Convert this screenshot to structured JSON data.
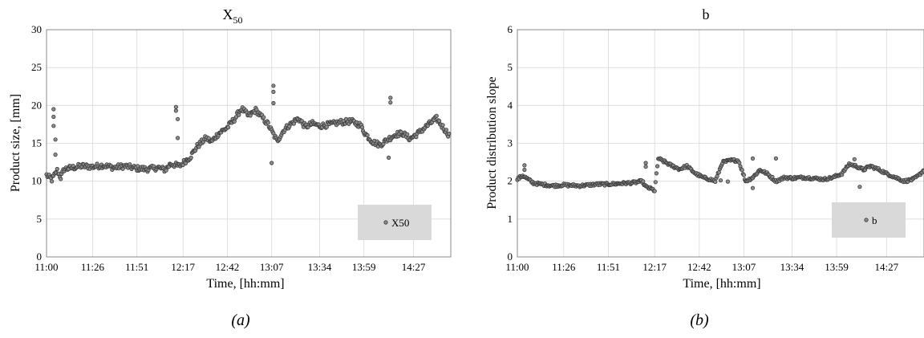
{
  "chart_data": [
    {
      "type": "scatter",
      "title_main": "X",
      "title_sub": "50",
      "xlabel": "Time, [hh:mm]",
      "ylabel": "Product size, [mm]",
      "x_tick_labels": [
        "11:00",
        "11:26",
        "11:51",
        "12:17",
        "12:42",
        "13:07",
        "13:34",
        "13:59",
        "14:27"
      ],
      "xlim": [
        "11:00",
        "14:48"
      ],
      "ylim": [
        0,
        30
      ],
      "yticks": [
        0,
        5,
        10,
        15,
        20,
        25,
        30
      ],
      "grid": true,
      "legend_position": "bottom-right",
      "series": [
        {
          "name": "X50",
          "marker": "circle",
          "anchors": [
            [
              "11:00",
              10.8
            ],
            [
              "11:03",
              10.2
            ],
            [
              "11:06",
              11.4
            ],
            [
              "11:08",
              10.5
            ],
            [
              "11:10",
              11.6
            ],
            [
              "11:15",
              11.8
            ],
            [
              "11:20",
              12.0
            ],
            [
              "11:26",
              11.9
            ],
            [
              "11:32",
              12.1
            ],
            [
              "11:38",
              11.8
            ],
            [
              "11:44",
              12.0
            ],
            [
              "11:51",
              11.7
            ],
            [
              "11:57",
              11.6
            ],
            [
              "12:03",
              11.8
            ],
            [
              "12:07",
              11.5
            ],
            [
              "12:10",
              12.3
            ],
            [
              "12:15",
              12.0
            ],
            [
              "12:21",
              13.2
            ],
            [
              "12:25",
              14.6
            ],
            [
              "12:30",
              15.7
            ],
            [
              "12:33",
              15.2
            ],
            [
              "12:37",
              16.3
            ],
            [
              "12:42",
              17.1
            ],
            [
              "12:46",
              18.2
            ],
            [
              "12:50",
              19.6
            ],
            [
              "12:54",
              18.6
            ],
            [
              "12:58",
              19.4
            ],
            [
              "13:02",
              18.3
            ],
            [
              "13:05",
              17.5
            ],
            [
              "13:10",
              15.3
            ],
            [
              "13:14",
              16.8
            ],
            [
              "13:18",
              17.6
            ],
            [
              "13:22",
              18.3
            ],
            [
              "13:26",
              17.2
            ],
            [
              "13:30",
              17.6
            ],
            [
              "13:34",
              17.3
            ],
            [
              "13:40",
              17.5
            ],
            [
              "13:46",
              17.8
            ],
            [
              "13:52",
              17.9
            ],
            [
              "13:57",
              17.4
            ],
            [
              "14:00",
              16.2
            ],
            [
              "14:04",
              15.2
            ],
            [
              "14:08",
              14.8
            ],
            [
              "14:13",
              15.6
            ],
            [
              "14:17",
              16.2
            ],
            [
              "14:21",
              16.3
            ],
            [
              "14:25",
              15.6
            ],
            [
              "14:30",
              16.4
            ],
            [
              "14:35",
              17.4
            ],
            [
              "14:40",
              18.3
            ],
            [
              "14:44",
              17.0
            ],
            [
              "14:47",
              16.1
            ]
          ],
          "outliers": [
            [
              "11:04",
              19.5
            ],
            [
              "11:04",
              18.5
            ],
            [
              "11:04",
              17.3
            ],
            [
              "11:05",
              15.5
            ],
            [
              "11:05",
              13.5
            ],
            [
              "12:13",
              19.8
            ],
            [
              "12:13",
              19.3
            ],
            [
              "12:14",
              18.2
            ],
            [
              "12:14",
              15.7
            ],
            [
              "13:08",
              22.6
            ],
            [
              "13:08",
              21.8
            ],
            [
              "13:08",
              20.3
            ],
            [
              "13:07",
              12.4
            ],
            [
              "14:14",
              21.0
            ],
            [
              "14:14",
              20.4
            ],
            [
              "14:13",
              13.1
            ]
          ]
        }
      ]
    },
    {
      "type": "scatter",
      "title": "b",
      "xlabel": "Time, [hh:mm]",
      "ylabel": "Product distribution slope",
      "x_tick_labels": [
        "11:00",
        "11:26",
        "11:51",
        "12:17",
        "12:42",
        "13:07",
        "13:34",
        "13:59",
        "14:27"
      ],
      "xlim": [
        "11:00",
        "14:48"
      ],
      "ylim": [
        0,
        6
      ],
      "yticks": [
        0,
        1,
        2,
        3,
        4,
        5,
        6
      ],
      "grid": true,
      "legend_position": "bottom-right",
      "series": [
        {
          "name": "b",
          "marker": "circle",
          "anchors": [
            [
              "11:00",
              2.05
            ],
            [
              "11:03",
              2.15
            ],
            [
              "11:06",
              2.05
            ],
            [
              "11:09",
              1.95
            ],
            [
              "11:13",
              1.92
            ],
            [
              "11:20",
              1.88
            ],
            [
              "11:26",
              1.9
            ],
            [
              "11:35",
              1.88
            ],
            [
              "11:45",
              1.92
            ],
            [
              "11:51",
              1.92
            ],
            [
              "11:58",
              1.94
            ],
            [
              "12:05",
              1.96
            ],
            [
              "12:10",
              2.0
            ],
            [
              "12:12",
              1.85
            ],
            [
              "12:15",
              1.8
            ],
            [
              "12:17",
              1.75
            ],
            [
              "12:19",
              2.6
            ],
            [
              "12:23",
              2.5
            ],
            [
              "12:27",
              2.4
            ],
            [
              "12:31",
              2.32
            ],
            [
              "12:35",
              2.4
            ],
            [
              "12:40",
              2.2
            ],
            [
              "12:44",
              2.1
            ],
            [
              "12:48",
              2.05
            ],
            [
              "12:51",
              2.0
            ],
            [
              "12:55",
              2.5
            ],
            [
              "13:00",
              2.55
            ],
            [
              "13:04",
              2.55
            ],
            [
              "13:08",
              2.0
            ],
            [
              "13:12",
              2.1
            ],
            [
              "13:16",
              2.3
            ],
            [
              "13:20",
              2.2
            ],
            [
              "13:25",
              2.0
            ],
            [
              "13:30",
              2.1
            ],
            [
              "13:34",
              2.08
            ],
            [
              "13:40",
              2.1
            ],
            [
              "13:46",
              2.08
            ],
            [
              "13:52",
              2.05
            ],
            [
              "13:57",
              2.1
            ],
            [
              "14:02",
              2.2
            ],
            [
              "14:06",
              2.45
            ],
            [
              "14:10",
              2.4
            ],
            [
              "14:14",
              2.3
            ],
            [
              "14:18",
              2.4
            ],
            [
              "14:23",
              2.3
            ],
            [
              "14:27",
              2.2
            ],
            [
              "14:32",
              2.1
            ],
            [
              "14:37",
              2.0
            ],
            [
              "14:42",
              2.05
            ],
            [
              "14:45",
              2.15
            ],
            [
              "14:48",
              2.3
            ]
          ],
          "outliers": [
            [
              "11:04",
              2.42
            ],
            [
              "11:04",
              2.3
            ],
            [
              "12:12",
              2.48
            ],
            [
              "12:12",
              2.38
            ],
            [
              "12:54",
              2.02
            ],
            [
              "12:58",
              1.99
            ],
            [
              "13:12",
              2.6
            ],
            [
              "13:12",
              1.82
            ],
            [
              "13:25",
              2.6
            ],
            [
              "14:09",
              2.58
            ],
            [
              "14:12",
              1.85
            ]
          ]
        }
      ]
    }
  ],
  "captions": {
    "a": "(a)",
    "b": "(b)"
  },
  "colors": {
    "marker_fill": "#8c8c8c",
    "marker_stroke": "#3a3a3a",
    "legend_bg": "#d9d9d9",
    "grid": "#d9d9d9",
    "axis": "#888888"
  }
}
